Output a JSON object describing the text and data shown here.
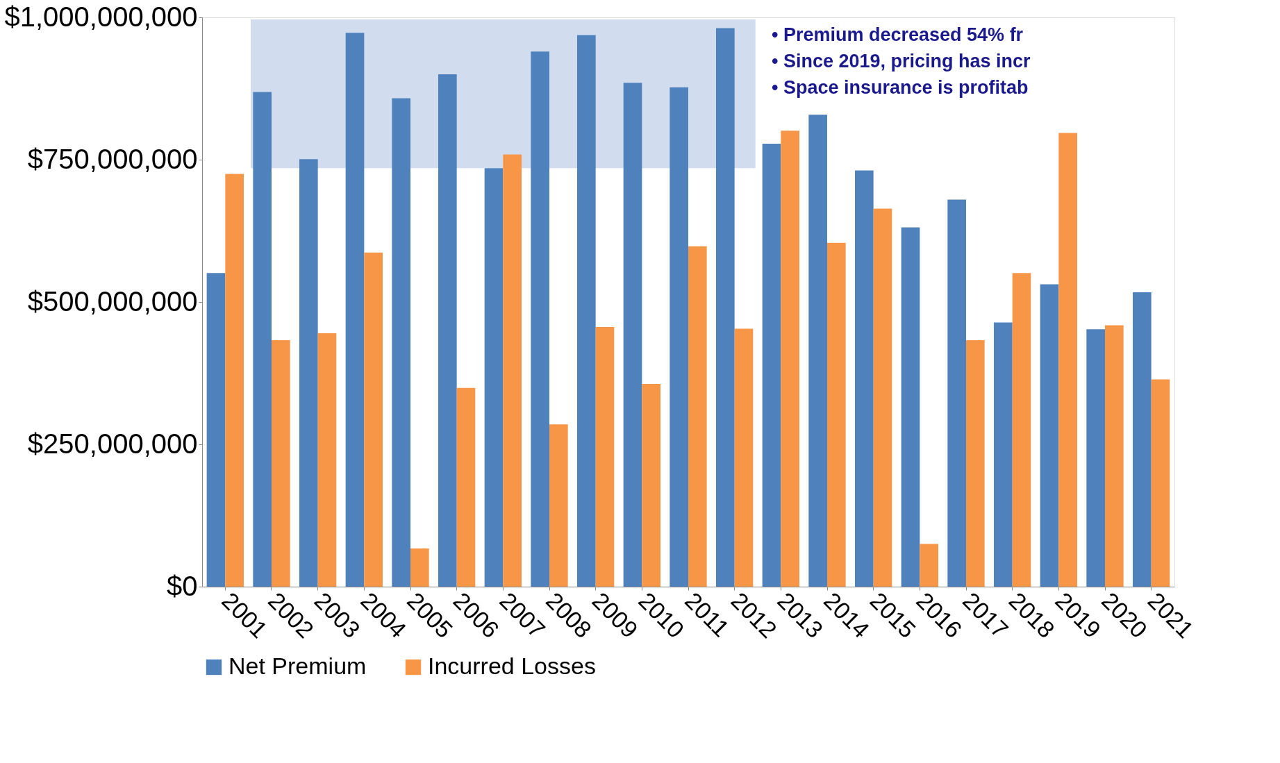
{
  "chart_data": {
    "type": "bar",
    "categories": [
      "2001",
      "2002",
      "2003",
      "2004",
      "2005",
      "2006",
      "2007",
      "2008",
      "2009",
      "2010",
      "2011",
      "2012",
      "2013",
      "2014",
      "2015",
      "2016",
      "2017",
      "2018",
      "2019",
      "2020",
      "2021"
    ],
    "series": [
      {
        "name": "Net Premium",
        "color": "#4f81bd",
        "values": [
          551000000,
          869000000,
          751000000,
          973000000,
          858000000,
          900000000,
          735000000,
          940000000,
          969000000,
          885000000,
          877000000,
          981000000,
          778000000,
          829000000,
          731000000,
          631000000,
          680000000,
          464000000,
          531000000,
          452000000,
          517000000
        ]
      },
      {
        "name": "Incurred Losses",
        "color": "#f79646",
        "values": [
          725000000,
          433000000,
          445000000,
          587000000,
          67000000,
          349000000,
          759000000,
          285000000,
          456000000,
          356000000,
          598000000,
          453000000,
          801000000,
          604000000,
          664000000,
          75000000,
          433000000,
          551000000,
          797000000,
          459000000,
          364000000
        ]
      }
    ],
    "ylim": [
      0,
      1000000000
    ],
    "yticks": [
      {
        "value": 0,
        "label": "$0"
      },
      {
        "value": 250000000,
        "label": "$250,000,000"
      },
      {
        "value": 500000000,
        "label": "$500,000,000"
      },
      {
        "value": 750000000,
        "label": "$750,000,000"
      },
      {
        "value": 1000000000,
        "label": "$1,000,000,000"
      }
    ],
    "bands": [
      {
        "axis": "x",
        "from": "2002",
        "to": "2012",
        "color": "#c6d5ea"
      }
    ],
    "annotations": [
      "• Premium decreased 54% fr",
      "• Since 2019, pricing has incr",
      "• Space insurance is profitab"
    ],
    "grid": false,
    "legend": "bottom"
  }
}
